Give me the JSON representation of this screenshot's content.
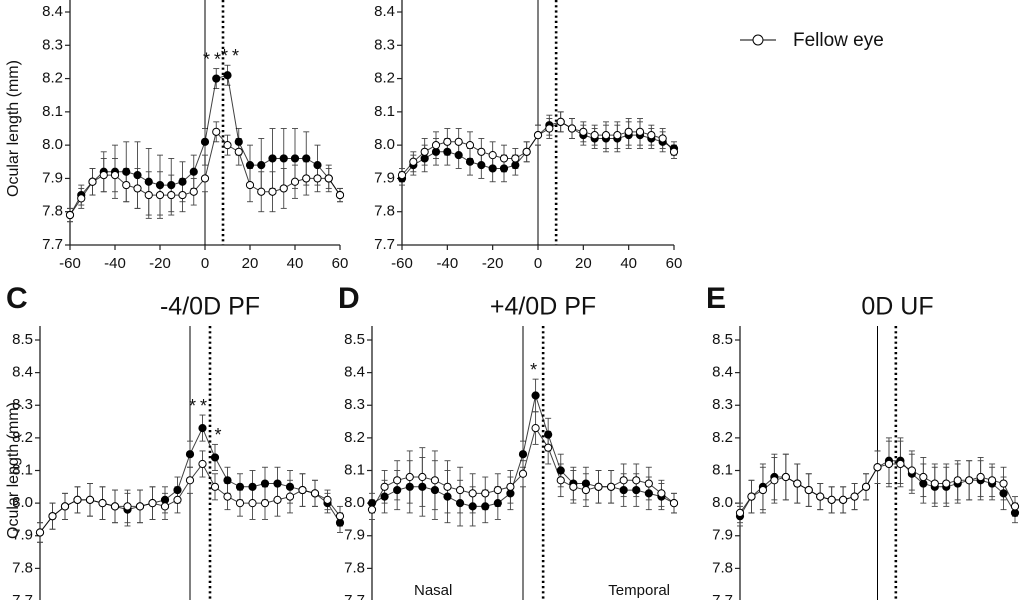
{
  "chart_data": [
    {
      "type": "line",
      "ylabel": "Ocular length (mm)",
      "x": [
        -60,
        -55,
        -50,
        -45,
        -40,
        -35,
        -30,
        -25,
        -20,
        -15,
        -10,
        -5,
        0,
        5,
        10,
        15,
        20,
        25,
        30,
        35,
        40,
        45,
        50,
        55,
        60
      ],
      "xlim": [
        -60,
        60
      ],
      "xticks": [
        -60,
        -40,
        -20,
        0,
        20,
        40,
        60
      ],
      "ylim": [
        7.7,
        8.4
      ],
      "yticks": [
        7.7,
        7.8,
        7.9,
        {
          "value": 8,
          "label": "8.0"
        },
        8.1,
        8.2,
        8.3,
        8.4
      ],
      "reference_lines": [
        {
          "x": 0,
          "style": "solid"
        },
        {
          "x": 8,
          "style": "dotted"
        }
      ],
      "annotations": [
        {
          "text": "**",
          "x": 4
        },
        {
          "text": "**",
          "x": 12
        }
      ],
      "series": [
        {
          "color": "#000000",
          "marker": "filled",
          "values": [
            7.79,
            7.85,
            7.89,
            7.92,
            7.92,
            7.92,
            7.91,
            7.89,
            7.88,
            7.88,
            7.89,
            7.92,
            8.01,
            8.2,
            8.21,
            8.01,
            7.94,
            7.94,
            7.96,
            7.96,
            7.96,
            7.96,
            7.94,
            7.9,
            7.85
          ],
          "errors": [
            0.02,
            0.03,
            0.04,
            0.06,
            0.08,
            0.09,
            0.1,
            0.1,
            0.09,
            0.08,
            0.06,
            0.05,
            0.04,
            0.03,
            0.03,
            0.04,
            0.06,
            0.08,
            0.09,
            0.09,
            0.09,
            0.08,
            0.06,
            0.04,
            0.02
          ]
        },
        {
          "name": "Fellow eye",
          "color": "#000000",
          "marker": "hollow",
          "values": [
            7.79,
            7.84,
            7.89,
            7.91,
            7.91,
            7.88,
            7.87,
            7.85,
            7.85,
            7.85,
            7.85,
            7.86,
            7.9,
            8.04,
            8.0,
            7.98,
            7.88,
            7.86,
            7.86,
            7.87,
            7.89,
            7.9,
            7.9,
            7.9,
            7.85
          ],
          "errors": [
            0.02,
            0.03,
            0.04,
            0.05,
            0.05,
            0.05,
            0.06,
            0.07,
            0.07,
            0.06,
            0.05,
            0.04,
            0.04,
            0.03,
            0.03,
            0.04,
            0.05,
            0.06,
            0.06,
            0.06,
            0.05,
            0.05,
            0.04,
            0.03,
            0.02
          ]
        }
      ]
    },
    {
      "type": "line",
      "show_legend": true,
      "x": [
        -60,
        -55,
        -50,
        -45,
        -40,
        -35,
        -30,
        -25,
        -20,
        -15,
        -10,
        -5,
        0,
        5,
        10,
        15,
        20,
        25,
        30,
        35,
        40,
        45,
        50,
        55,
        60
      ],
      "xlim": [
        -60,
        60
      ],
      "xticks": [
        -60,
        -40,
        -20,
        0,
        20,
        40,
        60
      ],
      "ylim": [
        7.7,
        8.4
      ],
      "yticks": [
        7.7,
        7.8,
        7.9,
        {
          "value": 8,
          "label": "8.0"
        },
        8.1,
        8.2,
        8.3,
        8.4
      ],
      "reference_lines": [
        {
          "x": 0,
          "style": "solid"
        },
        {
          "x": 8,
          "style": "dotted"
        }
      ],
      "series": [
        {
          "color": "#000000",
          "marker": "filled",
          "values": [
            7.9,
            7.94,
            7.96,
            7.98,
            7.98,
            7.97,
            7.95,
            7.94,
            7.93,
            7.93,
            7.94,
            7.98,
            8.03,
            8.06,
            8.07,
            8.05,
            8.03,
            8.02,
            8.02,
            8.02,
            8.03,
            8.03,
            8.02,
            8.01,
            7.99
          ],
          "errors": [
            0.02,
            0.03,
            0.04,
            0.04,
            0.04,
            0.04,
            0.04,
            0.04,
            0.04,
            0.04,
            0.03,
            0.03,
            0.03,
            0.03,
            0.03,
            0.03,
            0.03,
            0.03,
            0.04,
            0.04,
            0.04,
            0.04,
            0.03,
            0.03,
            0.02
          ]
        },
        {
          "name": "Fellow eye",
          "color": "#000000",
          "marker": "hollow",
          "values": [
            7.91,
            7.95,
            7.98,
            8.0,
            8.01,
            8.01,
            8.0,
            7.98,
            7.97,
            7.96,
            7.96,
            7.98,
            8.03,
            8.05,
            8.07,
            8.05,
            8.04,
            8.03,
            8.03,
            8.03,
            8.04,
            8.04,
            8.03,
            8.02,
            7.98
          ],
          "errors": [
            0.02,
            0.03,
            0.04,
            0.04,
            0.04,
            0.04,
            0.04,
            0.04,
            0.04,
            0.04,
            0.03,
            0.03,
            0.03,
            0.03,
            0.03,
            0.03,
            0.03,
            0.03,
            0.04,
            0.04,
            0.04,
            0.04,
            0.03,
            0.03,
            0.02
          ]
        }
      ]
    },
    {
      "type": "line",
      "panel": "C",
      "title": "-4/0D PF",
      "ylabel": "Ocular length (mm)",
      "x": [
        -60,
        -55,
        -50,
        -45,
        -40,
        -35,
        -30,
        -25,
        -20,
        -15,
        -10,
        -5,
        0,
        5,
        10,
        15,
        20,
        25,
        30,
        35,
        40,
        45,
        50,
        55,
        60
      ],
      "xlim": [
        -60,
        60
      ],
      "ylim": [
        7.7,
        8.5
      ],
      "yticks": [
        7.7,
        7.8,
        7.9,
        {
          "value": 8,
          "label": "8.0"
        },
        8.1,
        8.2,
        8.3,
        8.4,
        8.5
      ],
      "reference_lines": [
        {
          "x": 0,
          "style": "solid"
        },
        {
          "x": 8,
          "style": "dotted"
        }
      ],
      "annotations": [
        {
          "text": "**",
          "x": 4
        },
        {
          "text": "*",
          "x": 12
        }
      ],
      "series": [
        {
          "color": "#000000",
          "marker": "filled",
          "values": [
            7.91,
            7.96,
            7.99,
            8.01,
            8.01,
            8.0,
            7.99,
            7.98,
            7.99,
            8.0,
            8.01,
            8.04,
            8.15,
            8.23,
            8.14,
            8.07,
            8.05,
            8.05,
            8.06,
            8.06,
            8.05,
            8.04,
            8.03,
            8.0,
            7.94
          ],
          "errors": [
            0.03,
            0.04,
            0.04,
            0.04,
            0.05,
            0.05,
            0.05,
            0.05,
            0.05,
            0.05,
            0.04,
            0.04,
            0.04,
            0.04,
            0.04,
            0.04,
            0.04,
            0.05,
            0.05,
            0.05,
            0.05,
            0.05,
            0.04,
            0.03,
            0.03
          ]
        },
        {
          "name": "Fellow eye",
          "color": "#000000",
          "marker": "hollow",
          "values": [
            7.91,
            7.96,
            7.99,
            8.01,
            8.01,
            8.0,
            7.99,
            7.99,
            7.99,
            8.0,
            7.99,
            8.01,
            8.07,
            8.12,
            8.05,
            8.02,
            8.0,
            8.0,
            8.0,
            8.01,
            8.02,
            8.04,
            8.03,
            8.01,
            7.96
          ],
          "errors": [
            0.03,
            0.04,
            0.04,
            0.04,
            0.05,
            0.05,
            0.05,
            0.05,
            0.05,
            0.05,
            0.04,
            0.04,
            0.04,
            0.04,
            0.04,
            0.04,
            0.04,
            0.05,
            0.05,
            0.05,
            0.05,
            0.05,
            0.04,
            0.03,
            0.03
          ]
        }
      ]
    },
    {
      "type": "line",
      "panel": "D",
      "title": "+4/0D PF",
      "region_labels": [
        "Nasal",
        "Temporal"
      ],
      "x": [
        -60,
        -55,
        -50,
        -45,
        -40,
        -35,
        -30,
        -25,
        -20,
        -15,
        -10,
        -5,
        0,
        5,
        10,
        15,
        20,
        25,
        30,
        35,
        40,
        45,
        50,
        55,
        60
      ],
      "xlim": [
        -60,
        60
      ],
      "ylim": [
        7.7,
        8.5
      ],
      "yticks": [
        7.7,
        7.8,
        7.9,
        {
          "value": 8,
          "label": "8.0"
        },
        8.1,
        8.2,
        8.3,
        8.4,
        8.5
      ],
      "reference_lines": [
        {
          "x": 0,
          "style": "solid"
        },
        {
          "x": 8,
          "style": "dotted"
        }
      ],
      "annotations": [
        {
          "text": "*",
          "x": 5
        }
      ],
      "series": [
        {
          "color": "#000000",
          "marker": "filled",
          "values": [
            8.0,
            8.02,
            8.04,
            8.05,
            8.05,
            8.04,
            8.02,
            8.0,
            7.99,
            7.99,
            8.0,
            8.03,
            8.15,
            8.33,
            8.21,
            8.1,
            8.06,
            8.06,
            8.05,
            8.05,
            8.04,
            8.04,
            8.03,
            8.02,
            8.0
          ],
          "errors": [
            0.03,
            0.05,
            0.06,
            0.08,
            0.09,
            0.09,
            0.08,
            0.07,
            0.06,
            0.05,
            0.05,
            0.05,
            0.04,
            0.05,
            0.05,
            0.05,
            0.05,
            0.05,
            0.05,
            0.05,
            0.05,
            0.05,
            0.05,
            0.04,
            0.03
          ]
        },
        {
          "name": "Fellow eye",
          "color": "#000000",
          "marker": "hollow",
          "values": [
            7.98,
            8.05,
            8.07,
            8.08,
            8.08,
            8.07,
            8.05,
            8.04,
            8.03,
            8.03,
            8.04,
            8.05,
            8.09,
            8.23,
            8.17,
            8.07,
            8.05,
            8.04,
            8.05,
            8.05,
            8.07,
            8.07,
            8.06,
            8.03,
            8.0
          ],
          "errors": [
            0.03,
            0.05,
            0.06,
            0.08,
            0.09,
            0.09,
            0.08,
            0.07,
            0.06,
            0.05,
            0.05,
            0.05,
            0.04,
            0.05,
            0.05,
            0.05,
            0.05,
            0.05,
            0.05,
            0.05,
            0.05,
            0.05,
            0.05,
            0.04,
            0.03
          ]
        }
      ]
    },
    {
      "type": "line",
      "panel": "E",
      "title": "0D UF",
      "x": [
        -60,
        -55,
        -50,
        -45,
        -40,
        -35,
        -30,
        -25,
        -20,
        -15,
        -10,
        -5,
        0,
        5,
        10,
        15,
        20,
        25,
        30,
        35,
        40,
        45,
        50,
        55,
        60
      ],
      "xlim": [
        -60,
        60
      ],
      "ylim": [
        7.7,
        8.5
      ],
      "yticks": [
        7.7,
        7.8,
        7.9,
        {
          "value": 8,
          "label": "8.0"
        },
        8.1,
        8.2,
        8.3,
        8.4,
        8.5
      ],
      "reference_lines": [
        {
          "x": 0,
          "style": "solid"
        },
        {
          "x": 8,
          "style": "dotted"
        }
      ],
      "series": [
        {
          "color": "#000000",
          "marker": "filled",
          "values": [
            7.96,
            8.02,
            8.05,
            8.08,
            8.08,
            8.06,
            8.04,
            8.02,
            8.01,
            8.01,
            8.02,
            8.05,
            8.11,
            8.13,
            8.13,
            8.09,
            8.06,
            8.05,
            8.05,
            8.06,
            8.07,
            8.07,
            8.06,
            8.03,
            7.97
          ],
          "errors": [
            0.03,
            0.05,
            0.07,
            0.07,
            0.07,
            0.06,
            0.05,
            0.04,
            0.04,
            0.04,
            0.04,
            0.04,
            0.05,
            0.07,
            0.07,
            0.06,
            0.06,
            0.06,
            0.06,
            0.06,
            0.06,
            0.06,
            0.05,
            0.05,
            0.03
          ]
        },
        {
          "name": "Fellow eye",
          "color": "#000000",
          "marker": "hollow",
          "values": [
            7.97,
            8.02,
            8.04,
            8.07,
            8.08,
            8.06,
            8.04,
            8.02,
            8.01,
            8.01,
            8.02,
            8.05,
            8.11,
            8.12,
            8.12,
            8.1,
            8.08,
            8.06,
            8.06,
            8.07,
            8.07,
            8.08,
            8.07,
            8.06,
            7.99
          ],
          "errors": [
            0.03,
            0.05,
            0.07,
            0.07,
            0.07,
            0.06,
            0.05,
            0.04,
            0.04,
            0.04,
            0.04,
            0.04,
            0.05,
            0.07,
            0.07,
            0.06,
            0.06,
            0.06,
            0.06,
            0.06,
            0.06,
            0.06,
            0.05,
            0.05,
            0.03
          ]
        }
      ]
    }
  ]
}
